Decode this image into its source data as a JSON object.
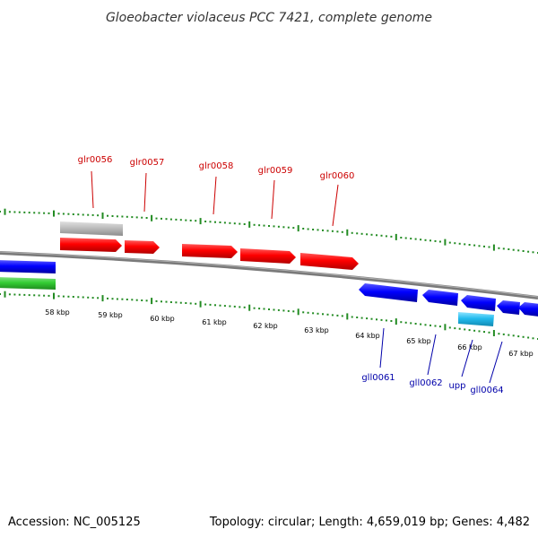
{
  "title": "Gloeobacter violaceus PCC 7421, complete genome",
  "footer": {
    "accession": "Accession: NC_005125",
    "summary": "Topology: circular; Length: 4,659,019 bp; Genes: 4,482"
  },
  "colors": {
    "forward_gene": "#ff0000",
    "reverse_gene": "#0000ff",
    "forward_label": "#cc0000",
    "reverse_label": "#0000aa",
    "rna_gene": "#33bbee",
    "unknown_feature": "#bdbdbd",
    "green_feature": "#33cc33",
    "backbone": "#808080",
    "tick": "#228b22"
  },
  "ruler_labels": [
    "58 kbp",
    "59 kbp",
    "60 kbp",
    "61 kbp",
    "62 kbp",
    "63 kbp",
    "64 kbp",
    "65 kbp",
    "66 kbp",
    "67 kbp"
  ],
  "forward_genes": [
    "glr0056",
    "glr0057",
    "glr0058",
    "glr0059",
    "glr0060"
  ],
  "reverse_genes": [
    "gll0061",
    "gll0062",
    "upp",
    "gll0064"
  ]
}
